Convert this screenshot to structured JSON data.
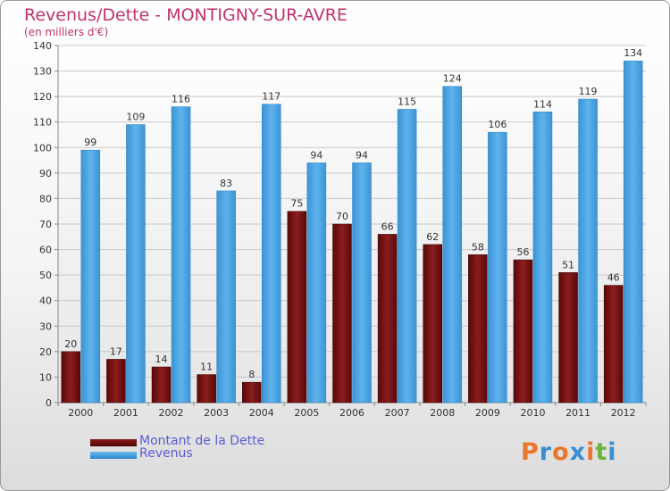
{
  "chart_data": {
    "type": "bar",
    "title": "Revenus/Dette - MONTIGNY-SUR-AVRE",
    "subtitle": "(en milliers d'€)",
    "categories": [
      "2000",
      "2001",
      "2002",
      "2003",
      "2004",
      "2005",
      "2006",
      "2007",
      "2008",
      "2009",
      "2010",
      "2011",
      "2012"
    ],
    "series": [
      {
        "name": "Montant de la Dette",
        "color": "#6b0c0c",
        "values": [
          20,
          17,
          14,
          11,
          8,
          75,
          70,
          66,
          62,
          58,
          56,
          51,
          46
        ]
      },
      {
        "name": "Revenus",
        "color": "#4aa3e0",
        "values": [
          99,
          109,
          116,
          83,
          117,
          94,
          94,
          115,
          124,
          106,
          114,
          119,
          134
        ]
      }
    ],
    "ylim": [
      0,
      140
    ],
    "yticks": [
      0,
      10,
      20,
      30,
      40,
      50,
      60,
      70,
      80,
      90,
      100,
      110,
      120,
      130,
      140
    ],
    "grid": true,
    "legend_position": "bottom-left"
  },
  "logo": {
    "text": "Proxiti",
    "colors": [
      "#e8762b",
      "#3a8fd0",
      "#e8762b",
      "#3a8fd0",
      "#e8762b",
      "#6cb33f",
      "#3a8fd0"
    ]
  }
}
